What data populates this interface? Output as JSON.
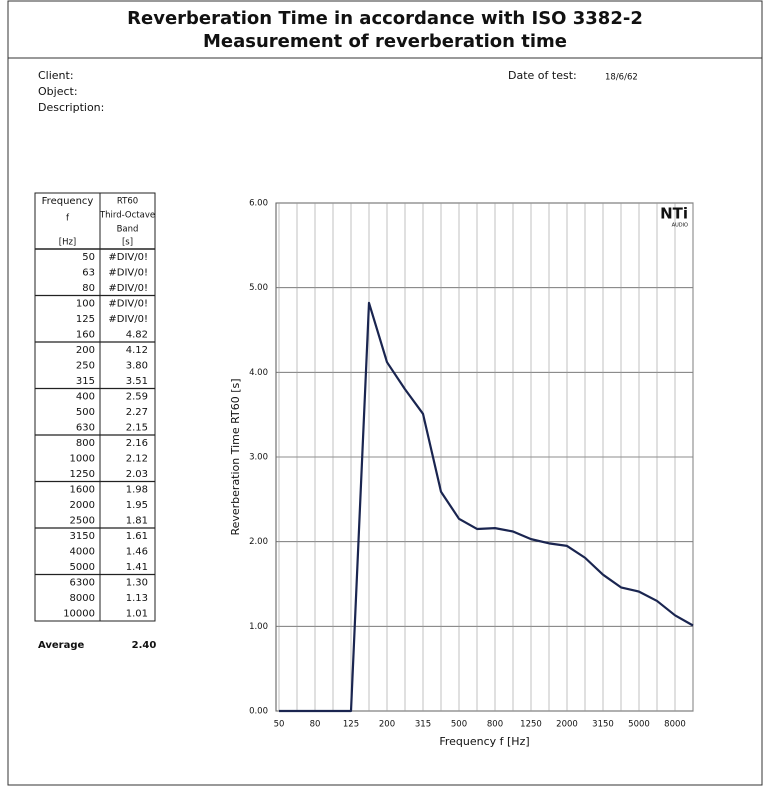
{
  "header": {
    "title": "Reverberation Time in accordance with ISO 3382-2",
    "subtitle": "Measurement of reverberation time"
  },
  "info": {
    "client": "Client:",
    "object": "Object:",
    "description": "Description:",
    "date_label": "Date of test:",
    "date_value": "18/6/62"
  },
  "table": {
    "header": [
      [
        "Frequency",
        "f",
        "[Hz]"
      ],
      [
        "RT60",
        "Third-Octave",
        "Band",
        "[s]"
      ]
    ],
    "rows": [
      [
        "50",
        "#DIV/0!"
      ],
      [
        "63",
        "#DIV/0!"
      ],
      [
        "80",
        "#DIV/0!"
      ],
      [
        "100",
        "#DIV/0!"
      ],
      [
        "125",
        "#DIV/0!"
      ],
      [
        "160",
        "4.82"
      ],
      [
        "200",
        "4.12"
      ],
      [
        "250",
        "3.80"
      ],
      [
        "315",
        "3.51"
      ],
      [
        "400",
        "2.59"
      ],
      [
        "500",
        "2.27"
      ],
      [
        "630",
        "2.15"
      ],
      [
        "800",
        "2.16"
      ],
      [
        "1000",
        "2.12"
      ],
      [
        "1250",
        "2.03"
      ],
      [
        "1600",
        "1.98"
      ],
      [
        "2000",
        "1.95"
      ],
      [
        "2500",
        "1.81"
      ],
      [
        "3150",
        "1.61"
      ],
      [
        "4000",
        "1.46"
      ],
      [
        "5000",
        "1.41"
      ],
      [
        "6300",
        "1.30"
      ],
      [
        "8000",
        "1.13"
      ],
      [
        "10000",
        "1.01"
      ]
    ],
    "average": [
      "Average",
      "2.40"
    ]
  },
  "chart_data": {
    "type": "line",
    "x_label": "Frequency f [Hz]",
    "y_label": "Reverberation Time RT60 [s]",
    "logo": {
      "text": "NTi",
      "sub": "AUDIO"
    },
    "categories": [
      "50",
      null,
      "80",
      null,
      "125",
      null,
      "200",
      null,
      "315",
      null,
      "500",
      null,
      "800",
      null,
      "1250",
      null,
      "2000",
      null,
      "3150",
      null,
      "5000",
      null,
      "8000",
      null
    ],
    "values": [
      0,
      0,
      0,
      0,
      0,
      4.82,
      4.12,
      3.8,
      3.51,
      2.59,
      2.27,
      2.15,
      2.16,
      2.12,
      2.03,
      1.98,
      1.95,
      1.81,
      1.61,
      1.46,
      1.41,
      1.3,
      1.13,
      1.01
    ],
    "color": "#1a2550",
    "ylim": [
      0,
      6
    ],
    "yticks": [
      {
        "value": 0,
        "label": "0.00"
      },
      {
        "value": 1,
        "label": "1.00"
      },
      {
        "value": 2,
        "label": "2.00"
      },
      {
        "value": 3,
        "label": "3.00"
      },
      {
        "value": 4,
        "label": "4.00"
      },
      {
        "value": 5,
        "label": "5.00"
      },
      {
        "value": 6,
        "label": "6.00"
      }
    ],
    "grid": true
  }
}
